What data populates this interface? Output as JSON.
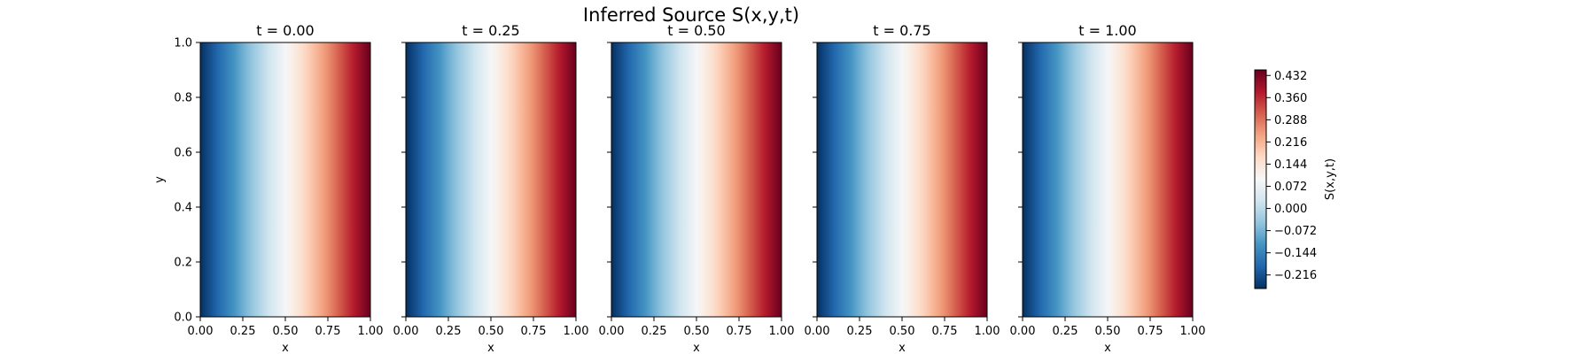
{
  "figure": {
    "title": "Inferred Source S(x,y,t)"
  },
  "chart_data": {
    "type": "heatmap",
    "title": "Inferred Source S(x,y,t)",
    "colormap": "RdBu_r",
    "field_description_from_image": "S varies linearly in x and is constant in y; identical in all five panels",
    "x_values": [
      0.0,
      0.25,
      0.5,
      0.75,
      1.0
    ],
    "s_values_at_x": [
      -0.26,
      -0.08,
      0.09,
      0.26,
      0.45
    ],
    "panels": [
      {
        "title": "t = 0.00",
        "xlabel": "x",
        "ylabel": "y"
      },
      {
        "title": "t = 0.25",
        "xlabel": "x",
        "ylabel": ""
      },
      {
        "title": "t = 0.50",
        "xlabel": "x",
        "ylabel": ""
      },
      {
        "title": "t = 0.75",
        "xlabel": "x",
        "ylabel": ""
      },
      {
        "title": "t = 1.00",
        "xlabel": "x",
        "ylabel": ""
      }
    ],
    "xlim": [
      0.0,
      1.0
    ],
    "ylim": [
      0.0,
      1.0
    ],
    "xticks": [
      "0.00",
      "0.25",
      "0.50",
      "0.75",
      "1.00"
    ],
    "yticks": [
      "0.0",
      "0.2",
      "0.4",
      "0.6",
      "0.8",
      "1.0"
    ],
    "colorbar": {
      "label": "S(x,y,t)",
      "range": [
        -0.26,
        0.45
      ],
      "ticks": [
        "0.432",
        "0.360",
        "0.288",
        "0.216",
        "0.144",
        "0.072",
        "0.000",
        "−0.072",
        "−0.144",
        "−0.216"
      ],
      "tick_values": [
        0.432,
        0.36,
        0.288,
        0.216,
        0.144,
        0.072,
        0.0,
        -0.072,
        -0.144,
        -0.216
      ]
    }
  }
}
